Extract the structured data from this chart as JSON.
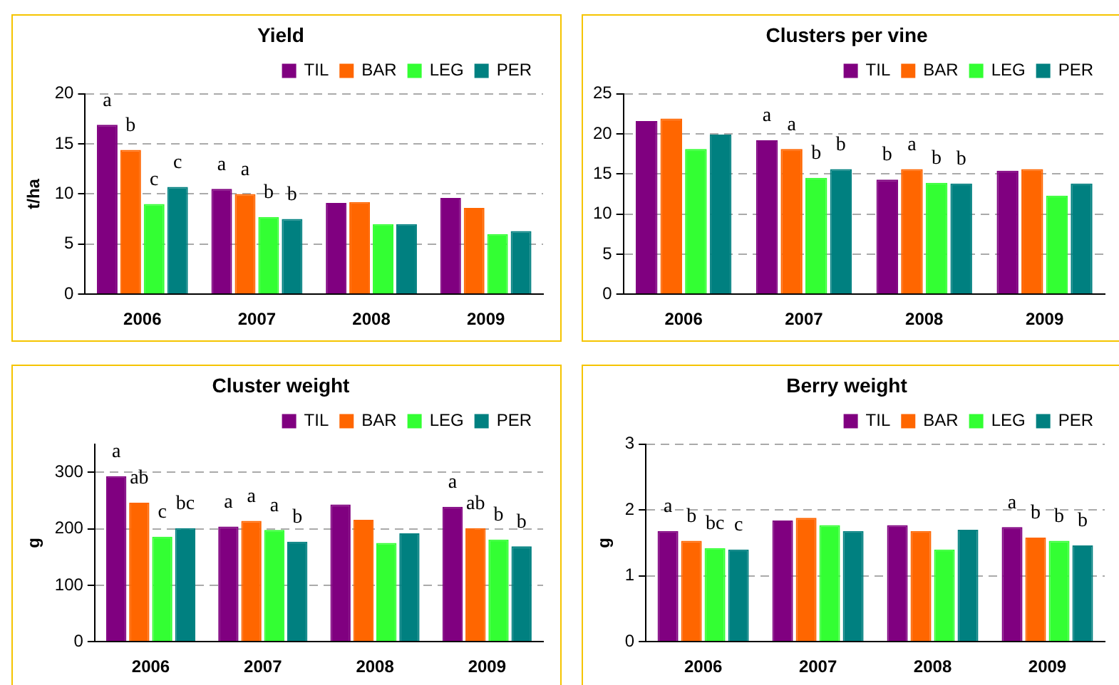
{
  "chart_data": [
    {
      "type": "bar",
      "title": "Yield",
      "ylabel": "t/ha",
      "categories": [
        "2006",
        "2007",
        "2008",
        "2009"
      ],
      "ylim": [
        0,
        20
      ],
      "yticks": [
        0,
        5,
        10,
        15,
        20
      ],
      "grid": "y",
      "legend": "top right",
      "series": [
        {
          "name": "TIL",
          "color": "#800080",
          "values": [
            16.9,
            10.5,
            9.1,
            9.6
          ],
          "value_labels": [
            "a",
            "a",
            null,
            null
          ]
        },
        {
          "name": "BAR",
          "color": "#ff6600",
          "values": [
            14.4,
            10.0,
            9.2,
            8.6
          ],
          "value_labels": [
            "b",
            "a",
            null,
            null
          ]
        },
        {
          "name": "LEG",
          "color": "#33ff33",
          "values": [
            9.0,
            7.7,
            7.0,
            6.0
          ],
          "value_labels": [
            "c",
            "b",
            null,
            null
          ]
        },
        {
          "name": "PER",
          "color": "#008080",
          "values": [
            10.7,
            7.5,
            7.0,
            6.3
          ],
          "value_labels": [
            "c",
            "b",
            null,
            null
          ]
        }
      ]
    },
    {
      "type": "bar",
      "title": "Clusters per vine",
      "categories": [
        "2006",
        "2007",
        "2008",
        "2009"
      ],
      "ylim": [
        0,
        25
      ],
      "yticks": [
        0,
        5,
        10,
        15,
        20,
        25
      ],
      "grid": "y",
      "legend": "top right",
      "series": [
        {
          "name": "TIL",
          "color": "#800080",
          "values": [
            21.6,
            19.2,
            14.3,
            15.4
          ],
          "value_labels": [
            null,
            "a",
            "b",
            null
          ]
        },
        {
          "name": "BAR",
          "color": "#ff6600",
          "values": [
            21.9,
            18.1,
            15.6,
            15.6
          ],
          "value_labels": [
            null,
            "a",
            "a",
            null
          ]
        },
        {
          "name": "LEG",
          "color": "#33ff33",
          "values": [
            18.1,
            14.5,
            13.9,
            12.3
          ],
          "value_labels": [
            null,
            "b",
            "b",
            null
          ]
        },
        {
          "name": "PER",
          "color": "#008080",
          "values": [
            19.9,
            15.6,
            13.8,
            13.8
          ],
          "value_labels": [
            null,
            "b",
            "b",
            null
          ]
        }
      ]
    },
    {
      "type": "bar",
      "title": "Cluster weight",
      "ylabel": "g",
      "categories": [
        "2006",
        "2007",
        "2008",
        "2009"
      ],
      "ylim": [
        0,
        350
      ],
      "yticks": [
        0,
        100,
        200,
        300
      ],
      "grid": "y",
      "legend": "top right",
      "series": [
        {
          "name": "TIL",
          "color": "#800080",
          "values": [
            293,
            204,
            243,
            239
          ],
          "value_labels": [
            "a",
            "a",
            null,
            "a"
          ]
        },
        {
          "name": "BAR",
          "color": "#ff6600",
          "values": [
            246,
            214,
            216,
            201
          ],
          "value_labels": [
            "ab",
            "a",
            null,
            "ab"
          ]
        },
        {
          "name": "LEG",
          "color": "#33ff33",
          "values": [
            186,
            198,
            175,
            181
          ],
          "value_labels": [
            "c",
            "a",
            null,
            "b"
          ]
        },
        {
          "name": "PER",
          "color": "#008080",
          "values": [
            201,
            177,
            192,
            169
          ],
          "value_labels": [
            "bc",
            "b",
            null,
            "b"
          ]
        }
      ]
    },
    {
      "type": "bar",
      "title": "Berry weight",
      "ylabel": "g",
      "categories": [
        "2006",
        "2007",
        "2008",
        "2009"
      ],
      "ylim": [
        0,
        3
      ],
      "yticks": [
        0,
        1,
        2,
        3
      ],
      "grid": "y",
      "legend": "top right",
      "series": [
        {
          "name": "TIL",
          "color": "#800080",
          "values": [
            1.68,
            1.84,
            1.77,
            1.74
          ],
          "value_labels": [
            "a",
            null,
            null,
            "a"
          ]
        },
        {
          "name": "BAR",
          "color": "#ff6600",
          "values": [
            1.53,
            1.88,
            1.68,
            1.58
          ],
          "value_labels": [
            "b",
            null,
            null,
            "b"
          ]
        },
        {
          "name": "LEG",
          "color": "#33ff33",
          "values": [
            1.42,
            1.77,
            1.4,
            1.53
          ],
          "value_labels": [
            "bc",
            null,
            null,
            "b"
          ]
        },
        {
          "name": "PER",
          "color": "#008080",
          "values": [
            1.4,
            1.68,
            1.7,
            1.46
          ],
          "value_labels": [
            "c",
            null,
            null,
            "b"
          ]
        }
      ]
    }
  ]
}
